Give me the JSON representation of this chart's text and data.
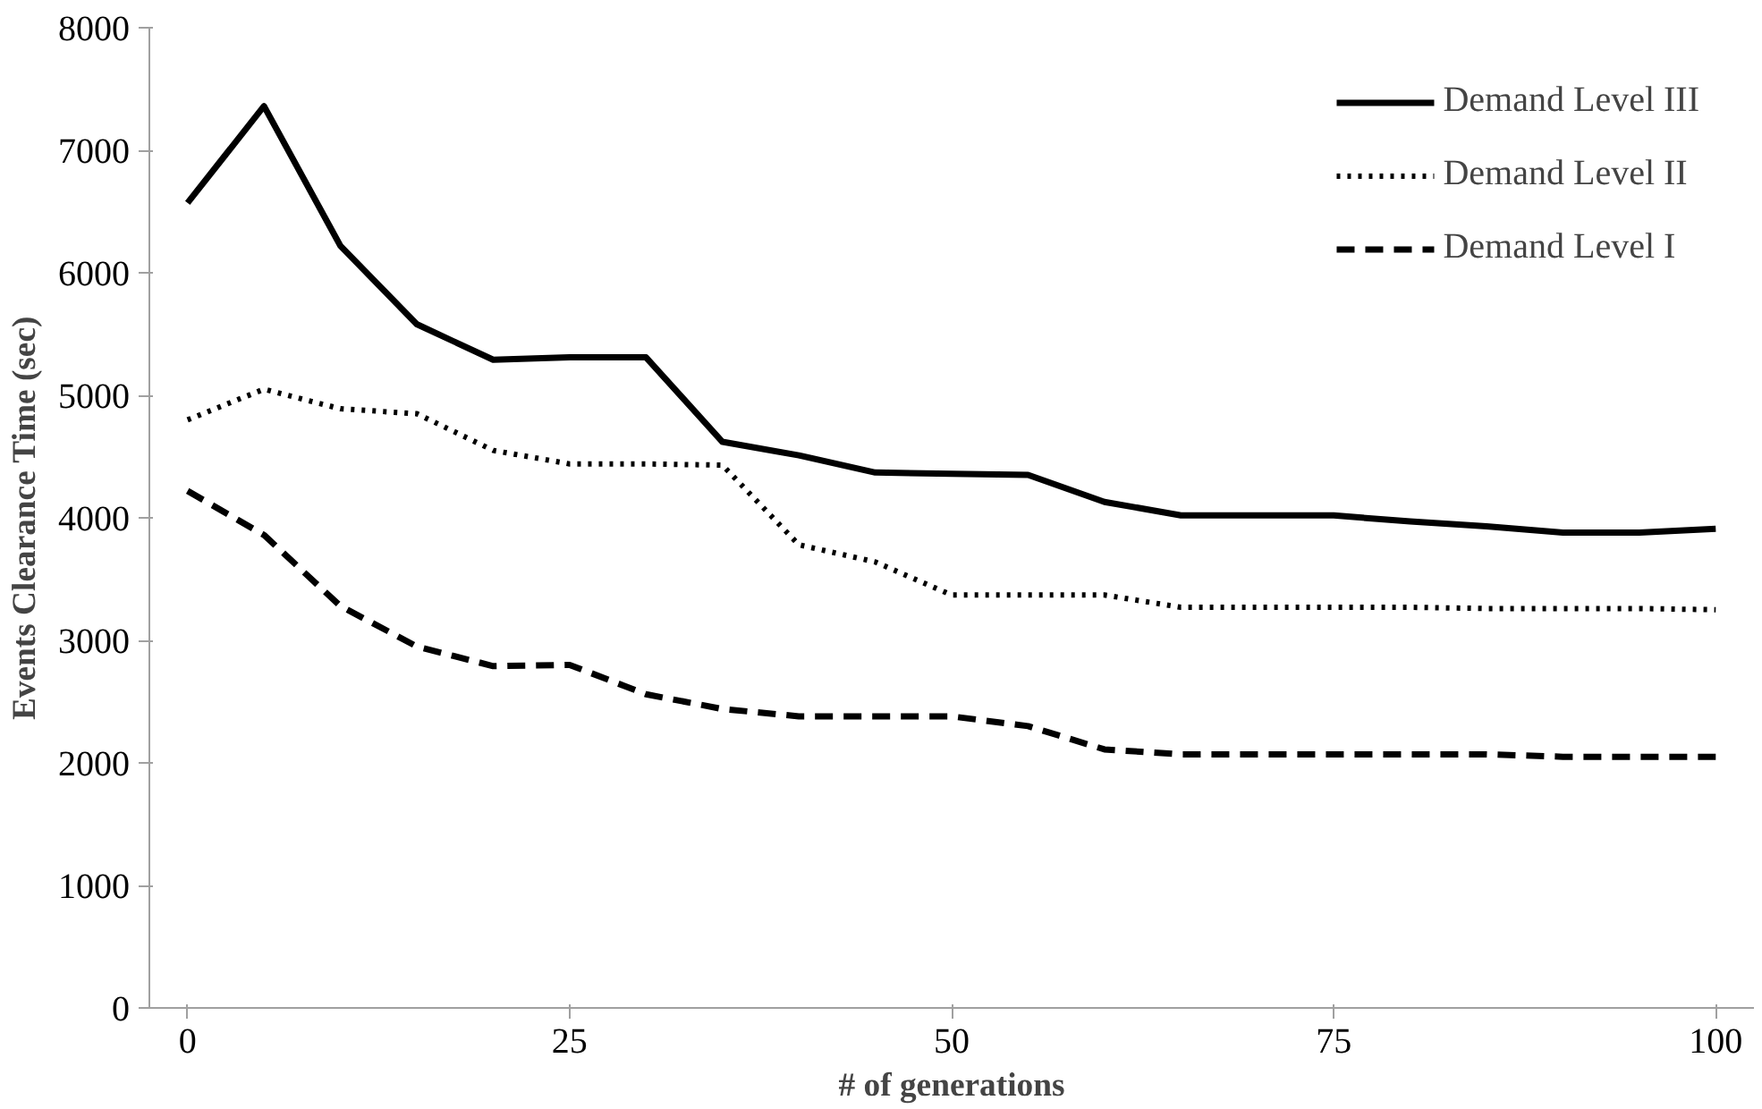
{
  "chart_data": {
    "type": "line",
    "xlabel": "# of generations",
    "ylabel": "Events Clearance Time (sec)",
    "x": [
      0,
      5,
      10,
      15,
      20,
      25,
      30,
      35,
      40,
      45,
      50,
      55,
      60,
      65,
      70,
      75,
      80,
      85,
      90,
      95,
      100
    ],
    "series": [
      {
        "name": "Demand Level III",
        "color": "#000000",
        "line_style": "solid",
        "values": [
          6570,
          7360,
          6220,
          5580,
          5290,
          5310,
          5310,
          4620,
          4510,
          4370,
          4360,
          4350,
          4130,
          4020,
          4020,
          4020,
          3970,
          3930,
          3880,
          3880,
          3910
        ]
      },
      {
        "name": "Demand Level II",
        "color": "#000000",
        "line_style": "dotted",
        "values": [
          4800,
          5050,
          4890,
          4850,
          4550,
          4440,
          4440,
          4430,
          3780,
          3640,
          3370,
          3370,
          3370,
          3270,
          3270,
          3270,
          3270,
          3260,
          3260,
          3260,
          3250
        ]
      },
      {
        "name": "Demand Level I",
        "color": "#000000",
        "line_style": "dashed",
        "values": [
          4220,
          3860,
          3280,
          2950,
          2790,
          2800,
          2560,
          2440,
          2380,
          2380,
          2380,
          2300,
          2110,
          2070,
          2070,
          2070,
          2070,
          2070,
          2050,
          2050,
          2050
        ]
      }
    ],
    "xlim": [
      -2.5,
      102.5
    ],
    "xticks": [
      0,
      25,
      50,
      75,
      100
    ],
    "ylim": [
      0,
      8000
    ],
    "yticks": [
      0,
      1000,
      2000,
      3000,
      4000,
      5000,
      6000,
      7000,
      8000
    ],
    "grid": false,
    "legend": "top right",
    "marker": "none"
  }
}
